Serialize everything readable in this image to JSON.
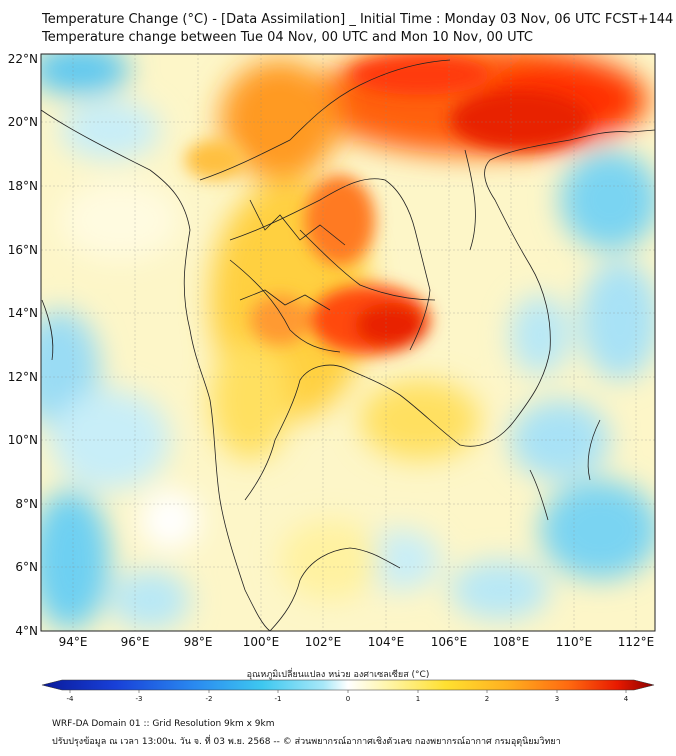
{
  "header": {
    "title_line1": "Temperature Change (°C) - [Data Assimilation] _ Initial Time : Monday 03 Nov, 06 UTC FCST+144",
    "title_line2": "Temperature change between Tue 04 Nov, 00 UTC and Mon 10 Nov, 00 UTC"
  },
  "map": {
    "lat_labels": [
      "22°N",
      "20°N",
      "18°N",
      "16°N",
      "14°N",
      "12°N",
      "10°N",
      "8°N",
      "6°N",
      "4°N"
    ],
    "lon_labels": [
      "94°E",
      "96°E",
      "98°E",
      "100°E",
      "102°E",
      "104°E",
      "106°E",
      "108°E",
      "110°E",
      "112°E"
    ]
  },
  "colorbar": {
    "title": "อุณหภูมิเปลี่ยนแปลง หน่วย องศาเซลเซียส (°C)",
    "ticks": [
      "-4",
      "-3",
      "-2",
      "-1",
      "0",
      "1",
      "2",
      "3",
      "4"
    ],
    "colors": [
      "#0a1a9a",
      "#1840d8",
      "#2a8af0",
      "#3ec8f0",
      "#a8e8f8",
      "#ffffff",
      "#fff6b0",
      "#ffe030",
      "#ffb020",
      "#ff6a10",
      "#e81a00",
      "#8a0000"
    ]
  },
  "footer": {
    "line1": "WRF-DA Domain 01 :: Grid Resolution 9km x 9km",
    "line2": "ปรับปรุงข้อมูล ณ เวลา 13:00น. วัน จ. ที่ 03 พ.ย. 2568 -- © ส่วนพยากรณ์อากาศเชิงตัวเลข กองพยากรณ์อากาศ กรมอุตุนิยมวิทยา"
  }
}
